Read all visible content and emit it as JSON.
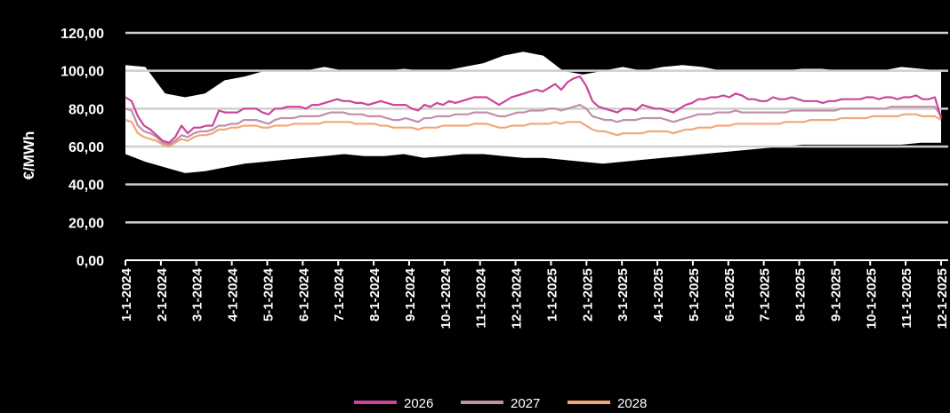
{
  "chart_data": {
    "type": "line",
    "title": "",
    "xlabel": "",
    "ylabel": "€/MWh",
    "ylim": [
      0,
      120
    ],
    "y_ticks": [
      "0,00",
      "20,00",
      "40,00",
      "60,00",
      "80,00",
      "100,00",
      "120,00"
    ],
    "x_ticks": [
      "1-1-2024",
      "2-1-2024",
      "3-1-2024",
      "4-1-2024",
      "5-1-2024",
      "6-1-2024",
      "7-1-2024",
      "8-1-2024",
      "9-1-2024",
      "10-1-2024",
      "11-1-2024",
      "12-1-2024",
      "1-1-2025",
      "2-1-2025",
      "3-1-2025",
      "4-1-2025",
      "5-1-2025",
      "6-1-2025",
      "7-1-2025",
      "8-1-2025",
      "9-1-2025",
      "10-1-2025",
      "11-1-2025",
      "12-1-2025"
    ],
    "grid": true,
    "legend_position": "bottom",
    "band": {
      "color": "#ffffff",
      "upper": [
        103,
        102,
        88,
        86,
        88,
        95,
        97,
        100,
        100,
        100,
        102,
        100,
        100,
        100,
        101,
        100,
        100,
        102,
        104,
        108,
        110,
        108,
        100,
        98,
        100,
        102,
        100,
        102,
        103,
        102,
        100,
        100,
        100,
        100,
        101,
        101,
        100,
        100,
        100,
        102,
        101,
        100
      ],
      "lower": [
        56,
        52,
        49,
        46,
        47,
        49,
        51,
        52,
        53,
        54,
        55,
        56,
        55,
        55,
        56,
        54,
        55,
        56,
        56,
        55,
        54,
        54,
        53,
        52,
        51,
        52,
        53,
        54,
        55,
        56,
        57,
        58,
        59,
        60,
        61,
        61,
        61,
        61,
        61,
        61,
        62,
        62
      ]
    },
    "series": [
      {
        "name": "2026",
        "color": "#c9469a",
        "values": [
          86,
          84,
          76,
          71,
          69,
          66,
          63,
          62,
          65,
          71,
          67,
          70,
          70,
          71,
          71,
          79,
          78,
          78,
          78,
          80,
          80,
          80,
          78,
          77,
          80,
          80,
          81,
          81,
          81,
          80,
          82,
          82,
          83,
          84,
          85,
          84,
          84,
          83,
          83,
          82,
          83,
          84,
          83,
          82,
          82,
          82,
          80,
          79,
          82,
          81,
          83,
          82,
          84,
          83,
          84,
          85,
          86,
          86,
          86,
          84,
          82,
          84,
          86,
          87,
          88,
          89,
          90,
          89,
          91,
          93,
          90,
          94,
          96,
          97,
          92,
          84,
          81,
          80,
          79,
          78,
          80,
          80,
          79,
          82,
          81,
          80,
          80,
          79,
          78,
          80,
          82,
          83,
          85,
          85,
          86,
          86,
          87,
          86,
          88,
          87,
          85,
          85,
          84,
          84,
          86,
          85,
          85,
          86,
          85,
          84,
          84,
          84,
          83,
          84,
          84,
          85,
          85,
          85,
          85,
          86,
          86,
          85,
          86,
          86,
          85,
          86,
          86,
          87,
          85,
          85,
          86,
          75
        ]
      },
      {
        "name": "2027",
        "color": "#c18fa8",
        "values": [
          80,
          79,
          71,
          68,
          67,
          65,
          62,
          61,
          63,
          66,
          65,
          67,
          68,
          68,
          69,
          71,
          71,
          72,
          72,
          74,
          74,
          74,
          73,
          72,
          74,
          75,
          75,
          75,
          76,
          76,
          76,
          76,
          77,
          78,
          78,
          78,
          77,
          77,
          77,
          76,
          76,
          76,
          75,
          74,
          74,
          75,
          74,
          73,
          75,
          75,
          76,
          76,
          76,
          77,
          77,
          77,
          78,
          78,
          78,
          77,
          76,
          76,
          77,
          78,
          78,
          79,
          79,
          79,
          80,
          80,
          79,
          80,
          81,
          82,
          80,
          76,
          75,
          74,
          74,
          73,
          74,
          74,
          74,
          75,
          75,
          75,
          75,
          74,
          73,
          74,
          75,
          76,
          77,
          77,
          77,
          78,
          78,
          78,
          79,
          78,
          78,
          78,
          78,
          78,
          78,
          78,
          78,
          79,
          79,
          79,
          79,
          79,
          79,
          79,
          79,
          80,
          80,
          80,
          80,
          80,
          80,
          80,
          80,
          81,
          81,
          81,
          81,
          81,
          81,
          81,
          81,
          76
        ]
      },
      {
        "name": "2028",
        "color": "#f0a878",
        "values": [
          74,
          73,
          67,
          65,
          64,
          63,
          61,
          60,
          62,
          64,
          63,
          65,
          66,
          66,
          67,
          69,
          69,
          70,
          70,
          71,
          71,
          71,
          70,
          70,
          71,
          71,
          71,
          72,
          72,
          72,
          72,
          72,
          73,
          73,
          73,
          73,
          73,
          72,
          72,
          72,
          72,
          71,
          71,
          70,
          70,
          70,
          70,
          69,
          70,
          70,
          70,
          71,
          71,
          71,
          71,
          71,
          72,
          72,
          72,
          71,
          70,
          70,
          71,
          71,
          71,
          72,
          72,
          72,
          72,
          73,
          72,
          73,
          73,
          73,
          71,
          69,
          68,
          68,
          67,
          66,
          67,
          67,
          67,
          67,
          68,
          68,
          68,
          68,
          67,
          68,
          69,
          69,
          70,
          70,
          70,
          71,
          71,
          71,
          72,
          72,
          72,
          72,
          72,
          72,
          72,
          72,
          73,
          73,
          73,
          73,
          74,
          74,
          74,
          74,
          74,
          75,
          75,
          75,
          75,
          75,
          76,
          76,
          76,
          76,
          76,
          77,
          77,
          77,
          76,
          76,
          76,
          74
        ]
      }
    ]
  }
}
